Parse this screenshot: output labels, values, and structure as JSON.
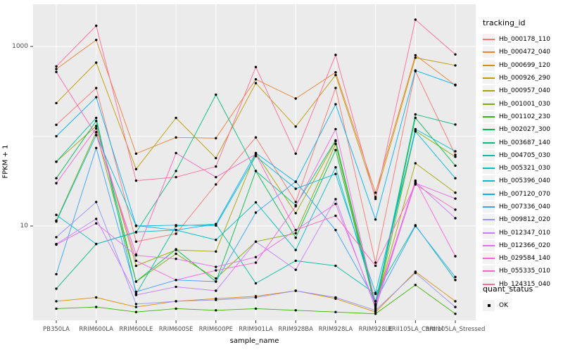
{
  "axes": {
    "x_title": "sample_name",
    "y_title": "FPKM + 1"
  },
  "legend": {
    "tracking_title": "tracking_id",
    "quant_title": "quant_status",
    "quant_ok_label": "OK"
  },
  "colors": {
    "panel_bg": "#EBEBEB",
    "gridline": "#FFFFFF",
    "tick_mark": "#333333",
    "tick_text": "#4D4D4D",
    "point": "#000000",
    "legend_key_bg": "#F2F2F2"
  },
  "chart_data": {
    "type": "line",
    "x_scale": "categorical",
    "y_scale": "log10",
    "ylim": [
      1,
      2100
    ],
    "grid": "on",
    "legend_position": "right",
    "y_major_gridlines": [
      10,
      100,
      1000
    ],
    "y_tick_values": [
      1000,
      10
    ],
    "y_tick_labels": [
      "1000",
      "10"
    ],
    "categories": [
      "PB350LA",
      "RRIM600LA",
      "RRIM600LE",
      "RRIM600SE",
      "RRIM600PE",
      "RRIM901LA",
      "RRIM928BA",
      "RRIM928LA",
      "RRIM928LE",
      "RRII105LA_Control",
      "RRII105LA_Stressed"
    ],
    "series": [
      {
        "name": "Hb_000178_110",
        "color": "#F8766D",
        "values": [
          134,
          344,
          6.7,
          8.2,
          29,
          97,
          18.5,
          345,
          3.9,
          530,
          62
        ]
      },
      {
        "name": "Hb_000472_040",
        "color": "#EA8331",
        "values": [
          560,
          1180,
          64,
          97,
          95,
          430,
          263,
          515,
          23.5,
          800,
          370
        ]
      },
      {
        "name": "Hb_000699_120",
        "color": "#D89000",
        "values": [
          1.45,
          1.6,
          1.25,
          1.45,
          1.55,
          1.65,
          1.9,
          1.55,
          1.1,
          3.1,
          1.45
        ]
      },
      {
        "name": "Hb_000926_290",
        "color": "#C09B00",
        "values": [
          234,
          660,
          43,
          160,
          57,
          390,
          128,
          480,
          21,
          750,
          615
        ]
      },
      {
        "name": "Hb_000957_040",
        "color": "#A3A500",
        "values": [
          52,
          130,
          3.6,
          5.4,
          5.2,
          65,
          13.9,
          88,
          1.3,
          50,
          23.5
        ]
      },
      {
        "name": "Hb_001001_030",
        "color": "#7CAE00",
        "values": [
          11.5,
          111,
          2.4,
          4.9,
          2.6,
          6.7,
          8.3,
          82,
          1.2,
          115,
          59
        ]
      },
      {
        "name": "Hb_001102_230",
        "color": "#39B600",
        "values": [
          1.2,
          1.25,
          1.1,
          1.2,
          1.15,
          1.2,
          1.15,
          1.1,
          1.05,
          2.2,
          1.05
        ]
      },
      {
        "name": "Hb_002027_300",
        "color": "#00BB4E",
        "values": [
          34,
          148,
          2.4,
          5.5,
          2.4,
          41,
          7.4,
          70,
          1.25,
          160,
          47
        ]
      },
      {
        "name": "Hb_003687_140",
        "color": "#00BF7D",
        "values": [
          2.0,
          6.3,
          8.5,
          41,
          290,
          41,
          17,
          90,
          1.35,
          175,
          135
        ]
      },
      {
        "name": "Hb_004705_030",
        "color": "#00C1A3",
        "values": [
          52,
          160,
          1.75,
          10,
          10.5,
          2.3,
          4.1,
          3.6,
          1.75,
          10.2,
          2.5
        ]
      },
      {
        "name": "Hb_005321_030",
        "color": "#00BFC4",
        "values": [
          13.3,
          6.3,
          8.6,
          9.0,
          7.0,
          18.3,
          5.4,
          45,
          1.45,
          120,
          68
        ]
      },
      {
        "name": "Hb_005396_040",
        "color": "#00BAE0",
        "values": [
          11.2,
          103,
          10,
          10.2,
          10.1,
          60,
          26,
          38,
          1.8,
          113,
          34
        ]
      },
      {
        "name": "Hb_007120_070",
        "color": "#00B0F6",
        "values": [
          100,
          272,
          10.1,
          9.0,
          10.5,
          65,
          31,
          227,
          11.8,
          540,
          375
        ]
      },
      {
        "name": "Hb_007336_040",
        "color": "#35A2FF",
        "values": [
          2.9,
          74,
          1.85,
          2.5,
          2.4,
          14.1,
          31.2,
          9.0,
          1.45,
          10.0,
          2.7
        ]
      },
      {
        "name": "Hb_009812_020",
        "color": "#9590FF",
        "values": [
          7.5,
          18.5,
          1.35,
          1.45,
          1.5,
          1.6,
          1.9,
          1.6,
          1.15,
          3.0,
          1.25
        ]
      },
      {
        "name": "Hb_012347_010",
        "color": "#C77CFF",
        "values": [
          6.3,
          12,
          1.7,
          2.1,
          1.9,
          6.7,
          3.25,
          19.9,
          1.2,
          31,
          12.2
        ]
      },
      {
        "name": "Hb_012366_020",
        "color": "#E76BF3",
        "values": [
          6.2,
          10.7,
          4.7,
          4.3,
          3.5,
          4.5,
          9.0,
          17.6,
          1.3,
          30,
          20.2
        ]
      },
      {
        "name": "Hb_029584_140",
        "color": "#FA62DB",
        "values": [
          30,
          122,
          4.1,
          2.5,
          3.2,
          3.9,
          16.6,
          120,
          1.35,
          32,
          4.6
        ]
      },
      {
        "name": "Hb_055335_010",
        "color": "#FF62BC",
        "values": [
          520,
          103,
          4.8,
          65,
          35,
          63,
          9.0,
          13.0,
          3.6,
          29,
          15.2
        ]
      },
      {
        "name": "Hb_124315_040",
        "color": "#FF6A98",
        "values": [
          600,
          1700,
          32,
          35,
          46,
          590,
          64,
          805,
          20,
          1990,
          815
        ]
      }
    ]
  }
}
